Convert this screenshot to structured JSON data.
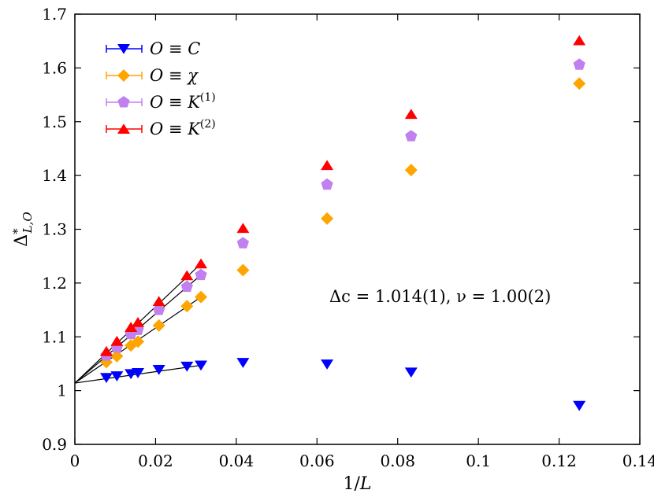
{
  "chart_data": {
    "type": "scatter",
    "xlabel": "1/L",
    "ylabel": "Δ*_{L,O}",
    "xlim": [
      0,
      0.14
    ],
    "ylim": [
      0.9,
      1.7
    ],
    "x_ticks": [
      "0",
      "0.02",
      "0.04",
      "0.06",
      "0.08",
      "0.1",
      "0.12",
      "0.14"
    ],
    "y_ticks": [
      "0.9",
      "1",
      "1.1",
      "1.2",
      "1.3",
      "1.4",
      "1.5",
      "1.6",
      "1.7"
    ],
    "annotation": "Δc = 1.014(1),  ν = 1.00(2)",
    "legend_position": "top-left",
    "series": [
      {
        "name": "O ≡ C",
        "legend": {
          "lhs": "O",
          "op": "≡",
          "rhs": "C",
          "sup": ""
        },
        "marker": "triangle-down",
        "color": "#0000ff",
        "x": [
          0.00781,
          0.01042,
          0.01389,
          0.01563,
          0.02083,
          0.02778,
          0.03125,
          0.04167,
          0.0625,
          0.08333,
          0.125
        ],
        "y": [
          1.024,
          1.027,
          1.031,
          1.033,
          1.039,
          1.045,
          1.047,
          1.052,
          1.049,
          1.034,
          0.972
        ]
      },
      {
        "name": "O ≡ χ",
        "legend": {
          "lhs": "O",
          "op": "≡",
          "rhs": "χ",
          "sup": ""
        },
        "marker": "diamond",
        "color": "#ffa500",
        "x": [
          0.00781,
          0.01042,
          0.01389,
          0.01563,
          0.02083,
          0.02778,
          0.03125,
          0.04167,
          0.0625,
          0.08333,
          0.125
        ],
        "y": [
          1.053,
          1.064,
          1.084,
          1.091,
          1.121,
          1.157,
          1.174,
          1.224,
          1.32,
          1.41,
          1.571
        ]
      },
      {
        "name": "O ≡ K(1)",
        "legend": {
          "lhs": "O",
          "op": "≡",
          "rhs": "K",
          "sup": "(1)"
        },
        "marker": "pentagon",
        "color": "#c080f0",
        "x": [
          0.00781,
          0.01042,
          0.01389,
          0.01563,
          0.02083,
          0.02778,
          0.03125,
          0.04167,
          0.0625,
          0.08333,
          0.125
        ],
        "y": [
          1.065,
          1.08,
          1.105,
          1.113,
          1.15,
          1.193,
          1.215,
          1.274,
          1.383,
          1.473,
          1.606
        ]
      },
      {
        "name": "O ≡ K(2)",
        "legend": {
          "lhs": "O",
          "op": "≡",
          "rhs": "K",
          "sup": "(2)"
        },
        "marker": "triangle-up",
        "color": "#ff0000",
        "x": [
          0.00781,
          0.01042,
          0.01389,
          0.01563,
          0.02083,
          0.02778,
          0.03125,
          0.04167,
          0.0625,
          0.08333,
          0.125
        ],
        "y": [
          1.073,
          1.092,
          1.118,
          1.127,
          1.166,
          1.214,
          1.236,
          1.302,
          1.419,
          1.514,
          1.651
        ]
      }
    ],
    "fit_lines": [
      {
        "intercept": 1.014,
        "x_end": 0.03125,
        "y_end": 1.047
      },
      {
        "intercept": 1.014,
        "x_end": 0.03125,
        "y_end": 1.174
      },
      {
        "intercept": 1.014,
        "x_end": 0.03125,
        "y_end": 1.215
      },
      {
        "intercept": 1.014,
        "x_end": 0.03125,
        "y_end": 1.236
      }
    ]
  }
}
